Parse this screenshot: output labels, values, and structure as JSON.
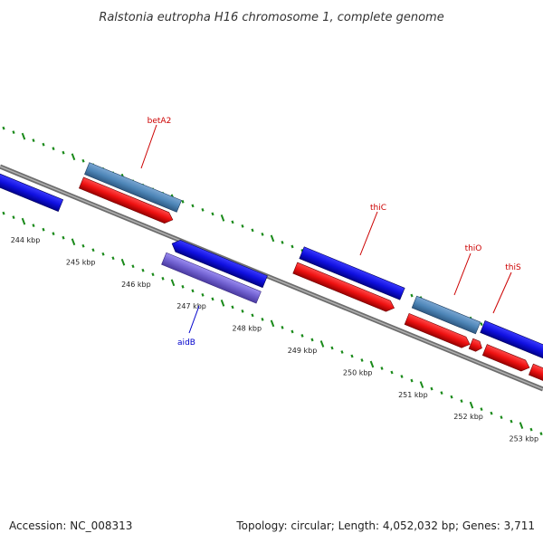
{
  "title": "Ralstonia eutropha H16 chromosome 1, complete genome",
  "footer": {
    "accession": "Accession: NC_008313",
    "summary": "Topology: circular; Length: 4,052,032 bp; Genes: 3,711"
  },
  "colors": {
    "backbone": "#8a8a8a",
    "tick": "#1a8a1a",
    "blue_gene": "#1010e0",
    "red_gene": "#ee1111",
    "steel_gene": "#4e86b8",
    "purple_gene": "#7060d0",
    "label_red": "#cc0000",
    "label_blue": "#0000cc"
  },
  "scale": {
    "ticks": [
      {
        "label": "244 kbp"
      },
      {
        "label": "245 kbp"
      },
      {
        "label": "246 kbp"
      },
      {
        "label": "247 kbp"
      },
      {
        "label": "248 kbp"
      },
      {
        "label": "249 kbp"
      },
      {
        "label": "250 kbp"
      },
      {
        "label": "251 kbp"
      },
      {
        "label": "252 kbp"
      },
      {
        "label": "253 kbp"
      }
    ]
  },
  "genes": [
    {
      "name": "",
      "kind": "blue",
      "strand": "-",
      "row": "top"
    },
    {
      "name": "betA2",
      "kind": "steel",
      "strand": "+",
      "row": "top",
      "label_color": "red"
    },
    {
      "name": "",
      "kind": "red",
      "strand": "+",
      "row": "top-inner"
    },
    {
      "name": "",
      "kind": "blue",
      "strand": "-",
      "row": "bottom"
    },
    {
      "name": "aidB",
      "kind": "purple",
      "strand": "-",
      "row": "bottom-inner",
      "label_color": "blue"
    },
    {
      "name": "thiC",
      "kind": "blue",
      "strand": "+",
      "row": "top",
      "label_color": "red"
    },
    {
      "name": "",
      "kind": "red",
      "strand": "+",
      "row": "top-inner"
    },
    {
      "name": "thiO",
      "kind": "steel",
      "strand": "+",
      "row": "top",
      "label_color": "red"
    },
    {
      "name": "",
      "kind": "red",
      "strand": "+",
      "row": "top-inner"
    },
    {
      "name": "thiS",
      "kind": "blue",
      "strand": "+",
      "row": "top",
      "label_color": "red"
    },
    {
      "name": "",
      "kind": "red",
      "strand": "+",
      "row": "top-inner"
    }
  ],
  "gene_labels": [
    {
      "name": "betA2",
      "color": "red"
    },
    {
      "name": "thiC",
      "color": "red"
    },
    {
      "name": "thiO",
      "color": "red"
    },
    {
      "name": "thiS",
      "color": "red"
    },
    {
      "name": "aidB",
      "color": "blue"
    }
  ]
}
